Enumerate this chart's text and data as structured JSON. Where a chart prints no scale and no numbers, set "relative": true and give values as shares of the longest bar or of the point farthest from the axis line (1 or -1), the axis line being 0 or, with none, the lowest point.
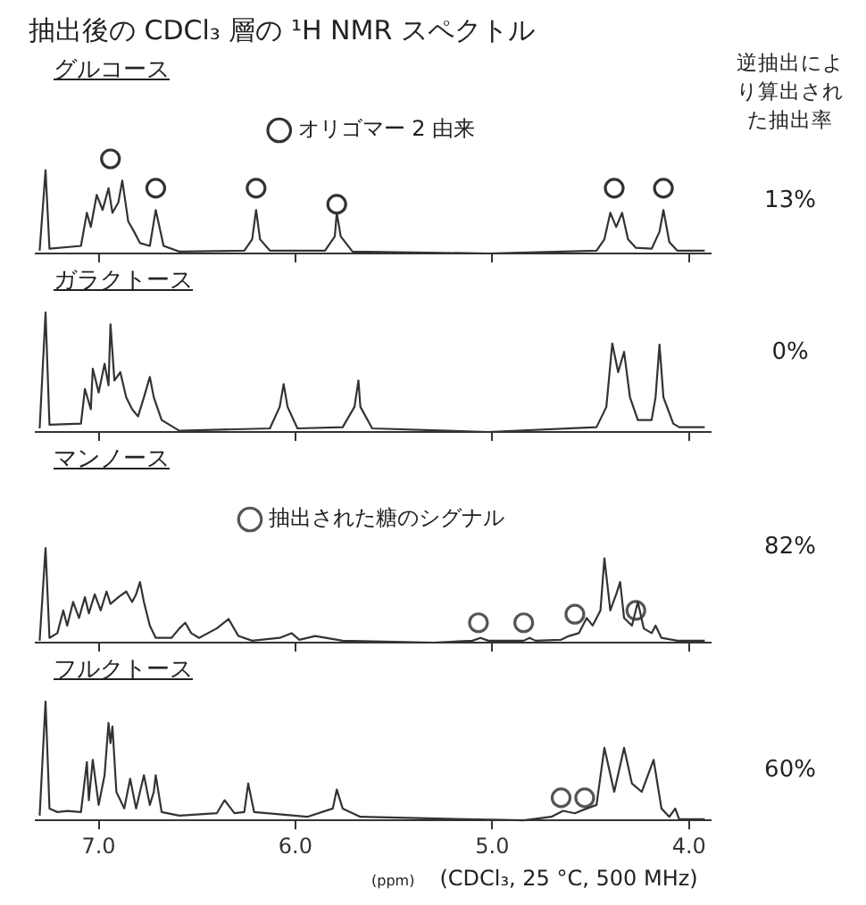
{
  "chart_data": [
    {
      "type": "line",
      "title": "抽出後の CDCl₃ 層の ¹H NMR スペクトル",
      "subtitle": "グルコース",
      "relative": true,
      "xlim": [
        7.32,
        3.89
      ],
      "xticks": [
        {
          "value": 7,
          "label": null
        },
        {
          "value": 6,
          "label": null
        },
        {
          "value": 5,
          "label": null
        },
        {
          "value": 4,
          "label": null
        }
      ],
      "tick_labels": false,
      "legend": "top",
      "annotations": [
        "逆抽出により算出された抽出率",
        "13%"
      ],
      "series": [
        {
          "type": "line",
          "color": "#333333",
          "marker": "none",
          "x": [
            7.3,
            7.27,
            7.25,
            7.09,
            7.06,
            7.04,
            7.01,
            6.98,
            6.95,
            6.93,
            6.9,
            6.88,
            6.85,
            6.82,
            6.79,
            6.74,
            6.71,
            6.67,
            6.59,
            6.26,
            6.22,
            6.2,
            6.18,
            6.13,
            5.85,
            5.8,
            5.79,
            5.77,
            5.71,
            5.02,
            4.47,
            4.43,
            4.4,
            4.37,
            4.34,
            4.31,
            4.27,
            4.19,
            4.15,
            4.13,
            4.1,
            4.06,
            3.92
          ],
          "values": [
            0.03,
            0.88,
            0.05,
            0.08,
            0.43,
            0.28,
            0.62,
            0.46,
            0.69,
            0.43,
            0.54,
            0.77,
            0.34,
            0.23,
            0.11,
            0.08,
            0.46,
            0.08,
            0.02,
            0.03,
            0.15,
            0.46,
            0.15,
            0.03,
            0.03,
            0.18,
            0.43,
            0.18,
            0.02,
            0,
            0.03,
            0.15,
            0.43,
            0.28,
            0.43,
            0.15,
            0.06,
            0.05,
            0.23,
            0.46,
            0.12,
            0.03,
            0.03
          ]
        },
        {
          "type": "scatter",
          "name": "オリゴマー 2 由来",
          "color": "#333333",
          "marker": "circle",
          "x": [
            6.94,
            6.71,
            6.2,
            5.79,
            4.38,
            4.13
          ],
          "values": [
            1.0,
            0.69,
            0.69,
            0.52,
            0.69,
            0.69
          ]
        }
      ]
    },
    {
      "type": "line",
      "subtitle": "ガラクトース",
      "relative": true,
      "xlim": [
        7.32,
        3.89
      ],
      "xticks": [
        {
          "value": 7,
          "label": null
        },
        {
          "value": 6,
          "label": null
        },
        {
          "value": 5,
          "label": null
        },
        {
          "value": 4,
          "label": null
        }
      ],
      "tick_labels": false,
      "annotations": [
        "0%"
      ],
      "series": [
        {
          "type": "line",
          "color": "#333333",
          "marker": "none",
          "x": [
            7.3,
            7.27,
            7.25,
            7.09,
            7.07,
            7.04,
            7.03,
            7.0,
            6.97,
            6.95,
            6.94,
            6.92,
            6.89,
            6.86,
            6.83,
            6.8,
            6.77,
            6.74,
            6.72,
            6.68,
            6.59,
            6.13,
            6.08,
            6.06,
            6.04,
            5.99,
            5.76,
            5.7,
            5.68,
            5.67,
            5.61,
            5.02,
            4.47,
            4.42,
            4.39,
            4.36,
            4.33,
            4.3,
            4.26,
            4.19,
            4.17,
            4.15,
            4.13,
            4.08,
            4.05,
            3.92
          ],
          "values": [
            0.03,
            1.0,
            0.06,
            0.07,
            0.36,
            0.19,
            0.53,
            0.33,
            0.57,
            0.39,
            0.9,
            0.43,
            0.5,
            0.29,
            0.19,
            0.13,
            0.29,
            0.46,
            0.29,
            0.1,
            0.01,
            0.03,
            0.21,
            0.4,
            0.21,
            0.03,
            0.04,
            0.21,
            0.43,
            0.21,
            0.03,
            0,
            0.04,
            0.21,
            0.74,
            0.5,
            0.67,
            0.29,
            0.1,
            0.1,
            0.29,
            0.73,
            0.29,
            0.07,
            0.04,
            0.04
          ]
        }
      ]
    },
    {
      "type": "line",
      "subtitle": "マンノース",
      "relative": true,
      "xlim": [
        7.32,
        3.89
      ],
      "xticks": [
        {
          "value": 7,
          "label": null
        },
        {
          "value": 6,
          "label": null
        },
        {
          "value": 5,
          "label": null
        },
        {
          "value": 4,
          "label": null
        }
      ],
      "tick_labels": false,
      "legend": "top",
      "annotations": [
        "82%"
      ],
      "series": [
        {
          "type": "line",
          "color": "#333333",
          "marker": "none",
          "x": [
            7.3,
            7.27,
            7.25,
            7.21,
            7.18,
            7.16,
            7.13,
            7.1,
            7.07,
            7.05,
            7.02,
            6.99,
            6.96,
            6.94,
            6.9,
            6.86,
            6.83,
            6.81,
            6.79,
            6.77,
            6.74,
            6.71,
            6.63,
            6.59,
            6.56,
            6.53,
            6.49,
            6.4,
            6.34,
            6.29,
            6.22,
            6.08,
            6.02,
            5.98,
            5.9,
            5.76,
            5.3,
            5.1,
            5.06,
            5.02,
            4.84,
            4.81,
            4.78,
            4.65,
            4.61,
            4.56,
            4.52,
            4.49,
            4.45,
            4.43,
            4.4,
            4.37,
            4.35,
            4.33,
            4.29,
            4.26,
            4.23,
            4.19,
            4.17,
            4.14,
            4.06,
            3.92
          ],
          "values": [
            0.02,
            1.0,
            0.05,
            0.1,
            0.34,
            0.18,
            0.43,
            0.26,
            0.48,
            0.31,
            0.51,
            0.34,
            0.54,
            0.41,
            0.48,
            0.54,
            0.43,
            0.51,
            0.64,
            0.43,
            0.18,
            0.05,
            0.05,
            0.15,
            0.21,
            0.1,
            0.05,
            0.15,
            0.25,
            0.07,
            0.02,
            0.05,
            0.1,
            0.03,
            0.07,
            0.02,
            0,
            0.02,
            0.05,
            0.02,
            0.02,
            0.05,
            0.02,
            0.03,
            0.07,
            0.1,
            0.26,
            0.18,
            0.34,
            0.89,
            0.34,
            0.51,
            0.64,
            0.26,
            0.18,
            0.43,
            0.15,
            0.1,
            0.18,
            0.05,
            0.02,
            0.02
          ]
        },
        {
          "type": "scatter",
          "name": "抽出された糖のシグナル",
          "color": "#555555",
          "marker": "circle",
          "x": [
            5.07,
            4.84,
            4.58,
            4.27
          ],
          "values": [
            0.21,
            0.21,
            0.3,
            0.34
          ]
        }
      ]
    },
    {
      "type": "line",
      "subtitle": "フルクトース",
      "relative": true,
      "xlim": [
        7.32,
        3.89
      ],
      "xticks": [
        {
          "value": 7,
          "label": "7.0"
        },
        {
          "value": 6,
          "label": "6.0"
        },
        {
          "value": 5,
          "label": "5.0"
        },
        {
          "value": 4,
          "label": "4.0"
        }
      ],
      "tick_labels": "x",
      "xlabel": "(ppm)",
      "annotations": [
        "(CDCl₃, 25 °C, 500 MHz)",
        "60%"
      ],
      "series": [
        {
          "type": "line",
          "color": "#333333",
          "marker": "none",
          "x": [
            7.3,
            7.27,
            7.25,
            7.21,
            7.16,
            7.09,
            7.06,
            7.05,
            7.03,
            7.0,
            6.97,
            6.95,
            6.94,
            6.93,
            6.91,
            6.87,
            6.84,
            6.81,
            6.79,
            6.77,
            6.74,
            6.72,
            6.71,
            6.68,
            6.59,
            6.4,
            6.36,
            6.31,
            6.26,
            6.24,
            6.21,
            5.94,
            5.81,
            5.79,
            5.76,
            5.67,
            4.84,
            4.7,
            4.64,
            4.58,
            4.52,
            4.47,
            4.43,
            4.38,
            4.33,
            4.29,
            4.24,
            4.18,
            4.14,
            4.1,
            4.07,
            4.05,
            3.92
          ],
          "values": [
            0.04,
            1.0,
            0.1,
            0.07,
            0.08,
            0.07,
            0.49,
            0.17,
            0.51,
            0.13,
            0.38,
            0.82,
            0.65,
            0.79,
            0.24,
            0.1,
            0.35,
            0.1,
            0.24,
            0.38,
            0.13,
            0.24,
            0.38,
            0.07,
            0.04,
            0.06,
            0.17,
            0.06,
            0.07,
            0.31,
            0.07,
            0.03,
            0.1,
            0.26,
            0.1,
            0.03,
            0,
            0.03,
            0.08,
            0.06,
            0.1,
            0.13,
            0.61,
            0.24,
            0.61,
            0.31,
            0.24,
            0.51,
            0.1,
            0.03,
            0.1,
            0.01,
            0.01
          ]
        },
        {
          "type": "scatter",
          "color": "#555555",
          "marker": "circle",
          "x": [
            4.65,
            4.53
          ],
          "values": [
            0.19,
            0.19
          ]
        }
      ]
    }
  ]
}
